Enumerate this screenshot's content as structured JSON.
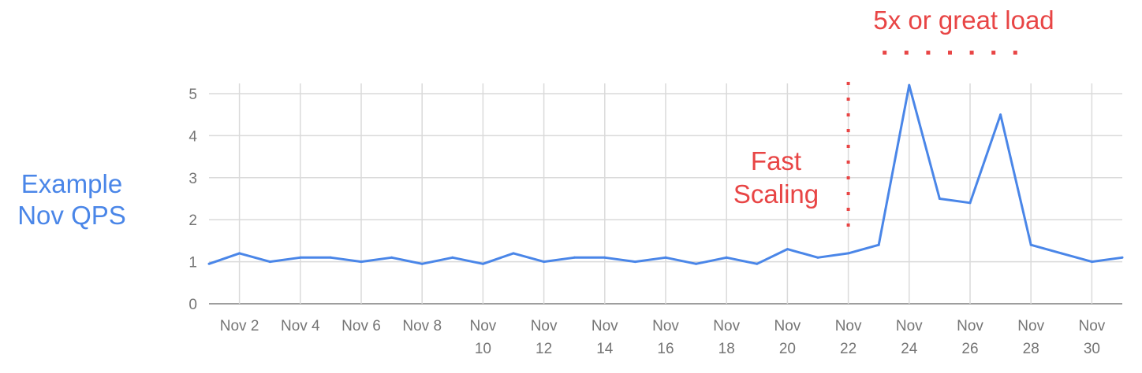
{
  "chart_data": {
    "type": "line",
    "ylabel_lines": [
      "Example",
      "Nov QPS"
    ],
    "ylim": [
      0,
      5
    ],
    "yticks": [
      0,
      1,
      2,
      3,
      4,
      5
    ],
    "x_start_day": 1,
    "x_end_day": 31,
    "tick_labels": [
      {
        "day": 2,
        "lines": [
          "Nov 2"
        ]
      },
      {
        "day": 4,
        "lines": [
          "Nov 4"
        ]
      },
      {
        "day": 6,
        "lines": [
          "Nov 6"
        ]
      },
      {
        "day": 8,
        "lines": [
          "Nov 8"
        ]
      },
      {
        "day": 10,
        "lines": [
          "Nov",
          "10"
        ]
      },
      {
        "day": 12,
        "lines": [
          "Nov",
          "12"
        ]
      },
      {
        "day": 14,
        "lines": [
          "Nov",
          "14"
        ]
      },
      {
        "day": 16,
        "lines": [
          "Nov",
          "16"
        ]
      },
      {
        "day": 18,
        "lines": [
          "Nov",
          "18"
        ]
      },
      {
        "day": 20,
        "lines": [
          "Nov",
          "20"
        ]
      },
      {
        "day": 22,
        "lines": [
          "Nov",
          "22"
        ]
      },
      {
        "day": 24,
        "lines": [
          "Nov",
          "24"
        ]
      },
      {
        "day": 26,
        "lines": [
          "Nov",
          "26"
        ]
      },
      {
        "day": 28,
        "lines": [
          "Nov",
          "28"
        ]
      },
      {
        "day": 30,
        "lines": [
          "Nov",
          "30"
        ]
      }
    ],
    "series": [
      {
        "color": "#4a86e8",
        "x": [
          1,
          2,
          3,
          4,
          5,
          6,
          7,
          8,
          9,
          10,
          11,
          12,
          13,
          14,
          15,
          16,
          17,
          18,
          19,
          20,
          21,
          22,
          23,
          24,
          25,
          26,
          27,
          28,
          29,
          30,
          31
        ],
        "values": [
          0.95,
          1.2,
          1.0,
          1.1,
          1.1,
          1.0,
          1.1,
          0.95,
          1.1,
          0.95,
          1.2,
          1.0,
          1.1,
          1.1,
          1.0,
          1.1,
          0.95,
          1.1,
          0.95,
          1.3,
          1.1,
          1.2,
          1.4,
          5.2,
          2.5,
          2.4,
          4.5,
          1.4,
          1.2,
          1.0,
          1.1
        ]
      }
    ],
    "annotations": {
      "fast_scaling_lines": [
        "Fast",
        "Scaling"
      ],
      "fast_scaling_day": 22,
      "load_label": "5x or great load",
      "load_from_day": 23,
      "load_to_day": 28,
      "color": "#e84545"
    },
    "grid": true
  }
}
